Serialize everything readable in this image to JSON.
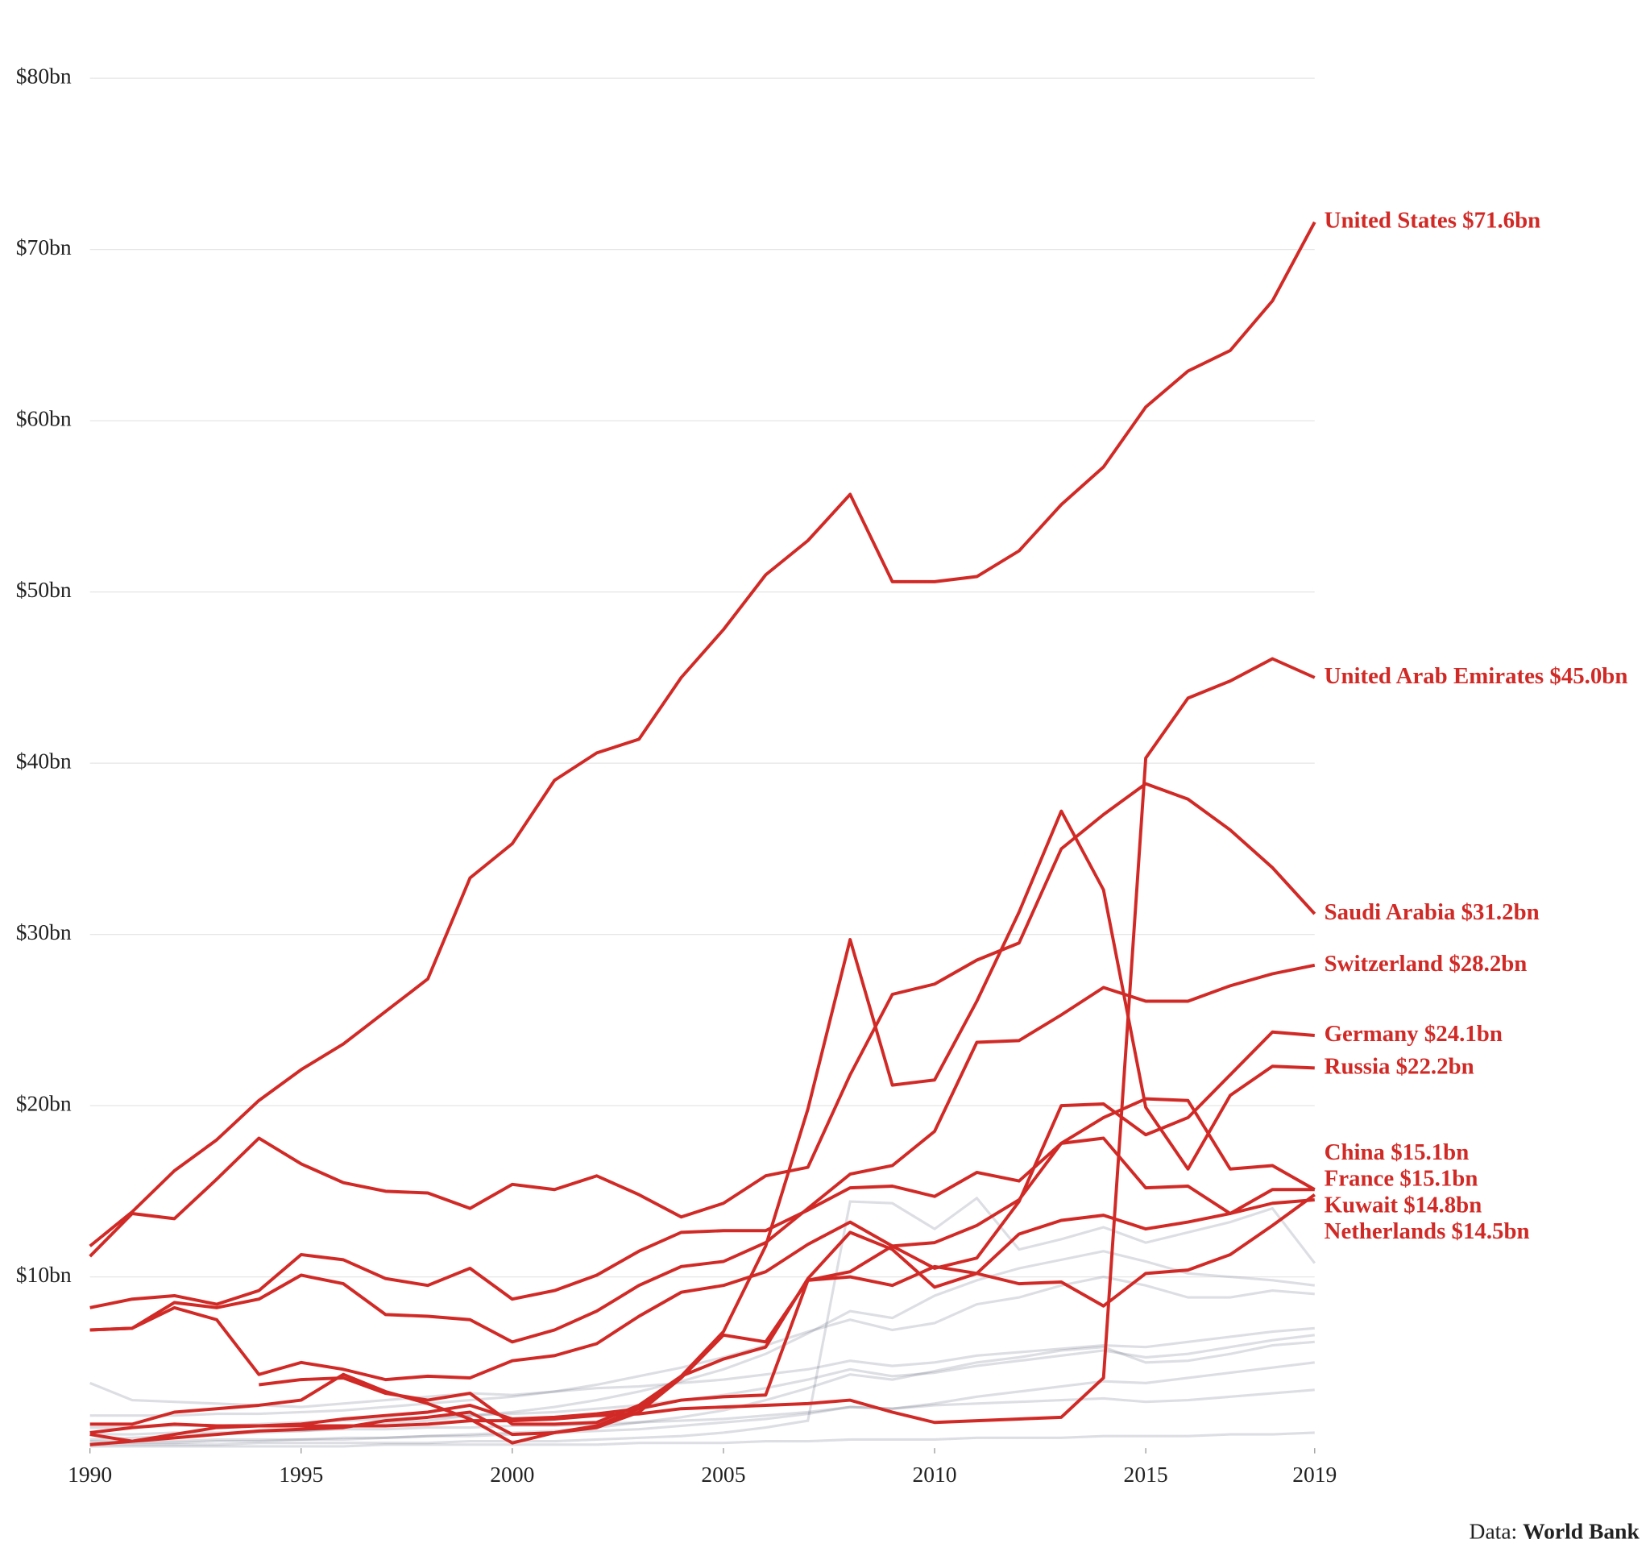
{
  "chart_data": {
    "type": "line",
    "x": [
      1990,
      1991,
      1992,
      1993,
      1994,
      1995,
      1996,
      1997,
      1998,
      1999,
      2000,
      2001,
      2002,
      2003,
      2004,
      2005,
      2006,
      2007,
      2008,
      2009,
      2010,
      2011,
      2012,
      2013,
      2014,
      2015,
      2016,
      2017,
      2018,
      2019
    ],
    "xlim": [
      1990,
      2019
    ],
    "xticks": [
      1990,
      1995,
      2000,
      2005,
      2010,
      2015,
      2019
    ],
    "ylim": [
      0,
      80
    ],
    "yticks": [
      {
        "value": 10,
        "label": "$10bn"
      },
      {
        "value": 20,
        "label": "$20bn"
      },
      {
        "value": 30,
        "label": "$30bn"
      },
      {
        "value": 40,
        "label": "$40bn"
      },
      {
        "value": 50,
        "label": "$50bn"
      },
      {
        "value": 60,
        "label": "$60bn"
      },
      {
        "value": 70,
        "label": "$70bn"
      },
      {
        "value": 80,
        "label": "$80bn"
      }
    ],
    "grid": true,
    "source": {
      "prefix": "Data:",
      "name": "World Bank"
    },
    "background_series": [
      {
        "color": "#2d3050",
        "values": [
          3.8,
          2.8,
          2.7,
          2.6,
          2.5,
          2.4,
          2.6,
          2.8,
          3.0,
          3.2,
          3.1,
          3.3,
          3.5,
          3.6,
          3.8,
          4.0,
          4.3,
          4.6,
          5.1,
          4.8,
          5.0,
          5.4,
          5.6,
          5.8,
          6.0,
          5.9,
          6.2,
          6.5,
          6.8,
          7.0
        ]
      },
      {
        "color": "#2d3050",
        "values": [
          0.5,
          0.6,
          0.7,
          0.8,
          0.9,
          1.0,
          1.2,
          1.4,
          1.6,
          1.9,
          2.1,
          2.4,
          2.8,
          3.3,
          3.9,
          4.6,
          5.5,
          6.7,
          8.0,
          7.6,
          8.9,
          9.8,
          10.5,
          11.0,
          11.5,
          10.9,
          10.2,
          10.0,
          9.8,
          9.5
        ]
      },
      {
        "color": "#2d3050",
        "values": [
          1.9,
          1.9,
          1.9,
          2.0,
          2.0,
          2.1,
          2.2,
          2.4,
          2.6,
          2.8,
          3.0,
          3.3,
          3.7,
          4.2,
          4.7,
          5.3,
          6.0,
          6.8,
          7.5,
          6.9,
          7.3,
          8.4,
          8.8,
          9.5,
          10.0,
          9.5,
          8.8,
          8.8,
          9.2,
          9.0
        ]
      },
      {
        "color": "#2d3050",
        "values": [
          0.3,
          0.3,
          0.3,
          0.4,
          0.4,
          0.5,
          0.5,
          0.6,
          0.7,
          0.8,
          0.9,
          1.0,
          1.2,
          1.5,
          1.8,
          2.2,
          2.8,
          3.5,
          4.3,
          4.0,
          4.5,
          5.0,
          5.3,
          5.7,
          5.9,
          5.0,
          5.1,
          5.5,
          6.0,
          6.2
        ]
      },
      {
        "color": "#2d3050",
        "values": [
          0.8,
          0.8,
          0.9,
          0.9,
          1.0,
          1.0,
          1.1,
          1.1,
          1.2,
          1.2,
          1.3,
          1.3,
          1.4,
          1.5,
          1.6,
          1.7,
          1.9,
          2.1,
          2.4,
          2.3,
          2.5,
          2.6,
          2.7,
          2.8,
          2.9,
          2.7,
          2.8,
          3.0,
          3.2,
          3.4
        ]
      },
      {
        "color": "#2d3050",
        "values": [
          0.2,
          0.2,
          0.2,
          0.2,
          0.3,
          0.3,
          0.3,
          0.3,
          0.3,
          0.4,
          0.4,
          0.4,
          0.5,
          0.6,
          0.7,
          0.9,
          1.2,
          1.6,
          14.4,
          14.3,
          12.8,
          14.6,
          11.6,
          12.2,
          12.9,
          12.0,
          12.6,
          13.2,
          14.0,
          10.8
        ]
      },
      {
        "color": "#2d3050",
        "values": [
          1.2,
          1.2,
          1.3,
          1.3,
          1.4,
          1.5,
          1.6,
          1.7,
          1.8,
          1.9,
          2.0,
          2.1,
          2.3,
          2.5,
          2.8,
          3.1,
          3.5,
          4.0,
          4.6,
          4.2,
          4.4,
          4.8,
          5.1,
          5.4,
          5.7,
          5.3,
          5.5,
          5.9,
          6.3,
          6.6
        ]
      },
      {
        "color": "#2d3050",
        "values": [
          0.1,
          0.1,
          0.1,
          0.1,
          0.1,
          0.1,
          0.1,
          0.2,
          0.2,
          0.2,
          0.2,
          0.2,
          0.2,
          0.3,
          0.3,
          0.3,
          0.4,
          0.4,
          0.5,
          0.5,
          0.5,
          0.6,
          0.6,
          0.6,
          0.7,
          0.7,
          0.7,
          0.8,
          0.8,
          0.9
        ]
      },
      {
        "color": "#2d3050",
        "values": [
          0.4,
          0.4,
          0.4,
          0.5,
          0.5,
          0.5,
          0.6,
          0.6,
          0.7,
          0.7,
          0.8,
          0.9,
          1.0,
          1.1,
          1.3,
          1.5,
          1.7,
          2.0,
          2.4,
          2.3,
          2.6,
          3.0,
          3.3,
          3.6,
          3.9,
          3.8,
          4.1,
          4.4,
          4.7,
          5.0
        ]
      }
    ],
    "series": [
      {
        "name": "United States",
        "color": "#d12a26",
        "values": [
          11.8,
          13.8,
          16.2,
          18.0,
          20.3,
          22.1,
          23.6,
          25.5,
          27.4,
          33.3,
          35.3,
          39.0,
          40.6,
          41.4,
          45.0,
          47.8,
          51.0,
          53.0,
          55.7,
          50.6,
          50.6,
          50.9,
          52.4,
          55.1,
          57.3,
          60.8,
          62.9,
          64.1,
          67.0,
          71.6
        ],
        "value_labels": [
          null,
          null,
          null,
          null,
          null,
          null,
          null,
          null,
          null,
          null,
          null,
          null,
          null,
          null,
          null,
          null,
          null,
          null,
          null,
          null,
          null,
          null,
          null,
          null,
          null,
          null,
          null,
          null,
          null,
          "$71.6bn"
        ]
      },
      {
        "name": "United Arab Emirates",
        "color": "#d12a26",
        "values": [
          0.8,
          0.4,
          0.8,
          1.2,
          1.3,
          1.3,
          1.3,
          1.3,
          1.4,
          1.6,
          1.6,
          1.7,
          1.9,
          2.0,
          2.3,
          2.4,
          2.5,
          2.6,
          2.8,
          2.1,
          1.5,
          1.6,
          1.7,
          1.8,
          4.1,
          40.3,
          43.8,
          44.8,
          46.1,
          45.0
        ],
        "value_labels": [
          null,
          null,
          null,
          null,
          null,
          null,
          null,
          null,
          null,
          null,
          null,
          null,
          null,
          null,
          null,
          null,
          null,
          null,
          null,
          null,
          null,
          null,
          null,
          null,
          null,
          null,
          null,
          null,
          null,
          "$45.0bn"
        ]
      },
      {
        "name": "Saudi Arabia",
        "color": "#d12a26",
        "values": [
          11.2,
          13.7,
          13.4,
          15.7,
          18.1,
          16.6,
          15.5,
          15.0,
          14.9,
          14.0,
          15.4,
          15.1,
          15.9,
          14.8,
          13.5,
          14.3,
          15.9,
          16.4,
          21.8,
          26.5,
          27.1,
          28.5,
          29.5,
          35.0,
          37.0,
          38.8,
          37.9,
          36.1,
          33.9,
          31.2
        ],
        "value_labels": [
          null,
          null,
          null,
          null,
          null,
          null,
          null,
          null,
          null,
          null,
          null,
          null,
          null,
          null,
          null,
          null,
          null,
          null,
          null,
          null,
          null,
          null,
          null,
          null,
          null,
          null,
          null,
          null,
          null,
          "$31.2bn"
        ]
      },
      {
        "name": "Switzerland",
        "color": "#d12a26",
        "values": [
          6.9,
          7.0,
          8.5,
          8.2,
          8.7,
          10.1,
          9.6,
          7.8,
          7.7,
          7.5,
          6.2,
          6.9,
          8.0,
          9.5,
          10.6,
          10.9,
          12.0,
          14.0,
          16.0,
          16.5,
          18.5,
          23.7,
          23.8,
          25.3,
          26.9,
          26.1,
          26.1,
          27.0,
          27.7,
          28.2
        ],
        "value_labels": [
          null,
          null,
          null,
          null,
          null,
          null,
          null,
          null,
          null,
          null,
          null,
          null,
          null,
          null,
          null,
          null,
          null,
          null,
          null,
          null,
          null,
          null,
          null,
          null,
          null,
          null,
          null,
          null,
          null,
          "$28.2bn"
        ]
      },
      {
        "name": "Germany",
        "color": "#d12a26",
        "values": [
          6.9,
          7.0,
          8.2,
          7.5,
          4.3,
          5.0,
          4.6,
          4.0,
          4.2,
          4.1,
          5.1,
          5.4,
          6.1,
          7.7,
          9.1,
          9.5,
          10.3,
          11.9,
          13.2,
          11.8,
          10.5,
          11.1,
          14.4,
          20.0,
          20.1,
          18.3,
          19.3,
          21.8,
          24.3,
          24.1
        ],
        "value_labels": [
          null,
          null,
          null,
          null,
          null,
          null,
          null,
          null,
          null,
          null,
          null,
          null,
          null,
          null,
          null,
          null,
          null,
          null,
          null,
          null,
          null,
          null,
          null,
          null,
          null,
          null,
          null,
          null,
          null,
          "$24.1bn"
        ]
      },
      {
        "name": "Russia",
        "color": "#d12a26",
        "values": [
          null,
          null,
          null,
          null,
          3.7,
          4.0,
          4.1,
          3.2,
          2.8,
          3.2,
          1.4,
          1.4,
          1.5,
          2.5,
          4.2,
          6.8,
          11.8,
          19.8,
          29.7,
          21.2,
          21.5,
          26.1,
          31.3,
          37.2,
          32.6,
          19.9,
          16.3,
          20.6,
          22.3,
          22.2
        ],
        "value_labels": [
          null,
          null,
          null,
          null,
          null,
          null,
          null,
          null,
          null,
          null,
          null,
          null,
          null,
          null,
          null,
          null,
          null,
          null,
          null,
          null,
          null,
          null,
          null,
          null,
          null,
          null,
          null,
          null,
          null,
          "$22.2bn"
        ]
      },
      {
        "name": "China",
        "color": "#d12a26",
        "values": [
          0.2,
          0.4,
          0.6,
          0.8,
          1.0,
          1.1,
          1.2,
          1.6,
          1.8,
          2.1,
          0.8,
          0.9,
          1.2,
          2.1,
          4.1,
          6.6,
          6.2,
          9.8,
          10.3,
          11.8,
          12.0,
          13.0,
          14.5,
          17.8,
          19.3,
          20.4,
          20.3,
          16.3,
          16.5,
          15.1
        ],
        "value_labels": [
          null,
          null,
          null,
          null,
          null,
          null,
          null,
          null,
          null,
          null,
          null,
          null,
          null,
          null,
          null,
          null,
          null,
          null,
          null,
          null,
          null,
          null,
          null,
          null,
          null,
          null,
          null,
          null,
          null,
          "$15.1bn"
        ]
      },
      {
        "name": "France",
        "color": "#d12a26",
        "values": [
          8.2,
          8.7,
          8.9,
          8.4,
          9.2,
          11.3,
          11.0,
          9.9,
          9.5,
          10.5,
          8.7,
          9.2,
          10.1,
          11.5,
          12.6,
          12.7,
          12.7,
          13.9,
          15.2,
          15.3,
          14.7,
          16.1,
          15.6,
          17.8,
          18.1,
          15.2,
          15.3,
          13.7,
          15.1,
          15.1
        ],
        "value_labels": [
          null,
          null,
          null,
          null,
          null,
          null,
          null,
          null,
          null,
          null,
          null,
          null,
          null,
          null,
          null,
          null,
          null,
          null,
          null,
          null,
          null,
          null,
          null,
          null,
          null,
          null,
          null,
          null,
          null,
          "$15.1bn"
        ]
      },
      {
        "name": "Kuwait",
        "color": "#d12a26",
        "values": [
          0.9,
          1.2,
          1.4,
          1.3,
          1.3,
          1.4,
          1.7,
          1.9,
          2.1,
          2.5,
          1.7,
          1.8,
          2.0,
          2.3,
          2.8,
          3.0,
          3.1,
          9.8,
          10.0,
          9.5,
          10.6,
          10.2,
          9.6,
          9.7,
          8.3,
          10.2,
          10.4,
          11.3,
          13.0,
          14.8
        ],
        "value_labels": [
          null,
          null,
          null,
          null,
          null,
          null,
          null,
          null,
          null,
          null,
          null,
          null,
          null,
          null,
          null,
          null,
          null,
          null,
          null,
          null,
          null,
          null,
          null,
          null,
          null,
          null,
          null,
          null,
          null,
          "$14.8bn"
        ]
      },
      {
        "name": "Netherlands",
        "color": "#d12a26",
        "values": [
          1.4,
          1.4,
          2.1,
          2.3,
          2.5,
          2.8,
          4.3,
          3.3,
          2.6,
          1.7,
          0.3,
          0.9,
          1.3,
          2.3,
          4.2,
          5.2,
          5.9,
          9.9,
          12.6,
          11.6,
          9.4,
          10.2,
          12.5,
          13.3,
          13.6,
          12.8,
          13.2,
          13.7,
          14.3,
          14.5
        ],
        "value_labels": [
          null,
          null,
          null,
          null,
          null,
          null,
          null,
          null,
          null,
          null,
          null,
          null,
          null,
          null,
          null,
          null,
          null,
          null,
          null,
          null,
          null,
          null,
          null,
          null,
          null,
          null,
          null,
          null,
          null,
          "$14.5bn"
        ]
      }
    ]
  }
}
